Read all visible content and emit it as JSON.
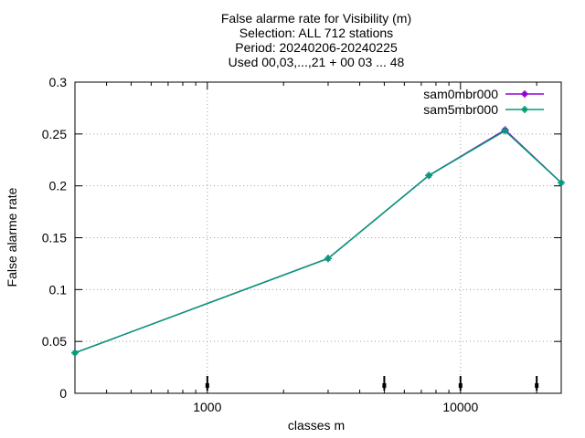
{
  "chart_data": {
    "type": "line",
    "title_lines": [
      "False alarme rate  for Visibility (m)",
      "Selection: ALL    712 stations",
      "Period: 20240206-20240225",
      "Used 00,03,...,21 + 00 03 ... 48"
    ],
    "xlabel": "classes m",
    "ylabel": "False alarme rate",
    "x_scale": "log",
    "xlim": [
      300,
      25000
    ],
    "ylim": [
      0,
      0.3
    ],
    "x_tick_values": [
      1000,
      10000
    ],
    "x_tick_labels": [
      "1000",
      "10000"
    ],
    "y_tick_values": [
      0,
      0.05,
      0.1,
      0.15,
      0.2,
      0.25,
      0.3
    ],
    "y_tick_labels": [
      "0",
      "0.05",
      "0.1",
      "0.15",
      "0.2",
      "0.25",
      "0.3"
    ],
    "grid": true,
    "legend_position": "top-right",
    "x": [
      300,
      3000,
      7500,
      15000,
      25000
    ],
    "series": [
      {
        "name": "sam0mbr000",
        "color": "#9400d3",
        "values": [
          0.039,
          0.13,
          0.21,
          0.254,
          0.203
        ]
      },
      {
        "name": "sam5mbr000",
        "color": "#009e73",
        "values": [
          0.039,
          0.13,
          0.21,
          0.253,
          0.203
        ]
      }
    ],
    "class_markers_x": [
      1000,
      5000,
      10000,
      20000
    ]
  }
}
